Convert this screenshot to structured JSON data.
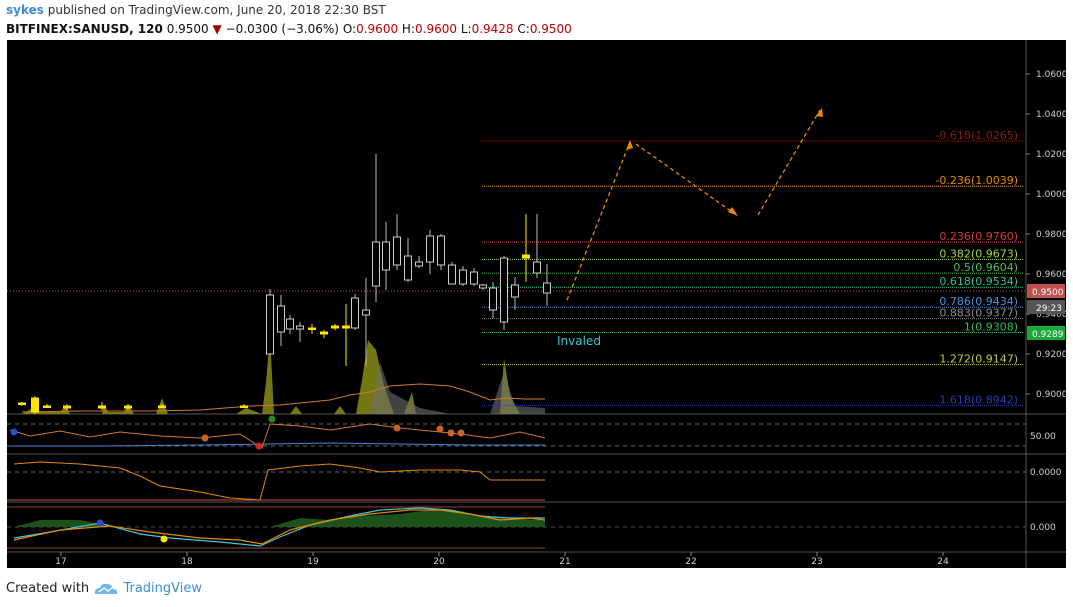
{
  "header": {
    "user": "sykes",
    "published_text": "published on TradingView.com, June 20, 2018 22:30 BST",
    "symbol": "BITFINEX:SANUSD, 120",
    "last": "0.9500",
    "change": "−0.0300 (−3.06%)",
    "open_label": "O:",
    "open": "0.9600",
    "high_label": "H:",
    "high": "0.9600",
    "low_label": "L:",
    "low": "0.9428",
    "close_label": "C:",
    "close": "0.9500"
  },
  "colors": {
    "background": "#000000",
    "up_candle": "#ffe600",
    "down_candle": "#000000",
    "volume": "#8a8a14",
    "price_line": "#c0504d",
    "accent": "#3d8bd9"
  },
  "price_axis": {
    "ticks": [
      "1.0600",
      "1.0400",
      "1.0200",
      "1.0000",
      "0.9800",
      "0.9600",
      "0.9400",
      "0.9200",
      "0.9000"
    ],
    "current_price": "0.9500",
    "countdown": "29:23",
    "green_tag": "0.9289"
  },
  "time_axis": {
    "labels": [
      "17",
      "18",
      "19",
      "20",
      "21",
      "22",
      "23",
      "24"
    ]
  },
  "fib_levels": [
    {
      "label": "-0.618(1.0265)",
      "price": 1.0265,
      "color": "#8b1a1a"
    },
    {
      "label": "-0.236(1.0039)",
      "price": 1.0039,
      "color": "#e58a00"
    },
    {
      "label": "0.236(0.9760)",
      "price": 0.976,
      "color": "#d23b3b"
    },
    {
      "label": "0.382(0.9673)",
      "price": 0.9673,
      "color": "#9fd64e"
    },
    {
      "label": "0.5(0.9604)",
      "price": 0.9604,
      "color": "#4fbf4f"
    },
    {
      "label": "0.618(0.9534)",
      "price": 0.9534,
      "color": "#2fc28f"
    },
    {
      "label": "0.786(0.9434)",
      "price": 0.9434,
      "color": "#4a90d9"
    },
    {
      "label": "0.883(0.9377)",
      "price": 0.9377,
      "color": "#8c8c8c"
    },
    {
      "label": "1(0.9308)",
      "price": 0.9308,
      "color": "#2fbf5f"
    },
    {
      "label": "1.272(0.9147)",
      "price": 0.9147,
      "color": "#c7c73a"
    },
    {
      "label": "1.618(0.8942)",
      "price": 0.8942,
      "color": "#2a3cb0"
    }
  ],
  "annotation": {
    "text": "Invaled",
    "color": "#3ec9d6"
  },
  "rsi": {
    "tick": "50.00"
  },
  "osc1": {
    "tick": "0.0000"
  },
  "osc2": {
    "tick": "0.000"
  },
  "footer": {
    "created_with": "Created with",
    "brand": "TradingView"
  }
}
